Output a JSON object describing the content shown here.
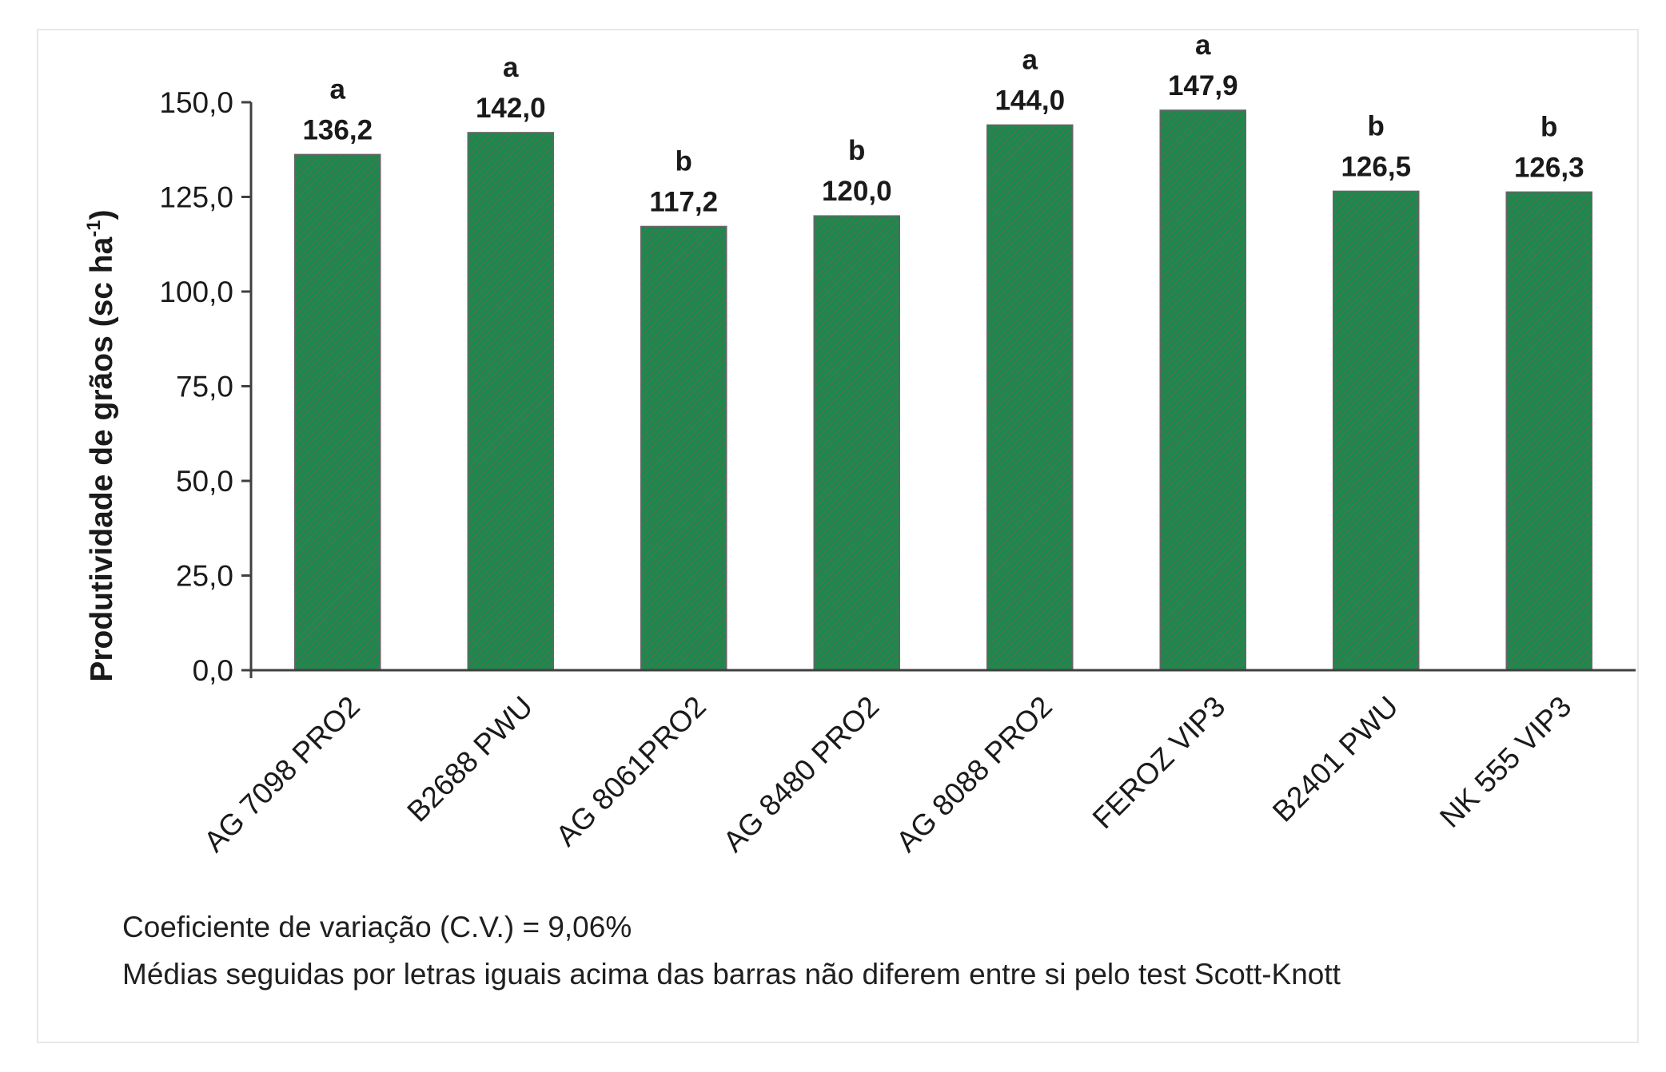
{
  "chart_data": {
    "type": "bar",
    "categories": [
      "AG 7098 PRO2",
      "B2688 PWU",
      "AG 8061PRO2",
      "AG 8480 PRO2",
      "AG 8088 PRO2",
      "FEROZ VIP3",
      "B2401 PWU",
      "NK 555 VIP3"
    ],
    "values": [
      136.2,
      142.0,
      117.2,
      120.0,
      144.0,
      147.9,
      126.5,
      126.3
    ],
    "value_labels": [
      "136,2",
      "142,0",
      "117,2",
      "120,0",
      "144,0",
      "147,9",
      "126,5",
      "126,3"
    ],
    "letters": [
      "a",
      "a",
      "b",
      "b",
      "a",
      "a",
      "b",
      "b"
    ],
    "ylabel": "Produtividade de grãos (sc ha",
    "ylabel_superscript": "-1",
    "ylabel_close": ")",
    "xlabel": "",
    "ylim": [
      0,
      150
    ],
    "yticks": [
      0,
      25,
      50,
      75,
      100,
      125,
      150
    ],
    "ytick_labels": [
      "0,0",
      "25,0",
      "50,0",
      "75,0",
      "100,0",
      "125,0",
      "150,0"
    ],
    "grid": false,
    "bar_color": "#1a8a4a",
    "bar_hatch_color": "#5a6a5e"
  },
  "notes": {
    "cv": "Coeficiente de variação (C.V.) = 9,06%",
    "test": "Médias seguidas por letras iguais acima das barras não diferem entre si pelo test Scott-Knott"
  }
}
